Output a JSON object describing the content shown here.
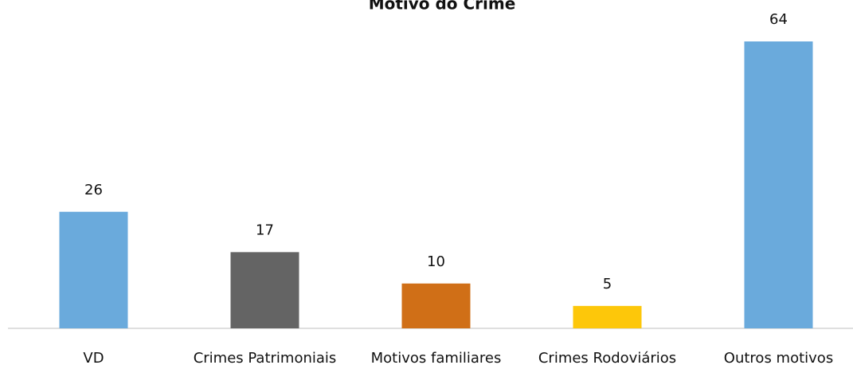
{
  "chart_data": {
    "type": "bar",
    "title": "Motivo do Crime",
    "categories": [
      "VD",
      "Crimes Patrimoniais",
      "Motivos familiares",
      "Crimes Rodoviários",
      "Outros motivos"
    ],
    "values": [
      26,
      17,
      10,
      5,
      64
    ],
    "colors": [
      "#6aaadc",
      "#646464",
      "#d06f17",
      "#fdc70a",
      "#6aaadc"
    ]
  }
}
